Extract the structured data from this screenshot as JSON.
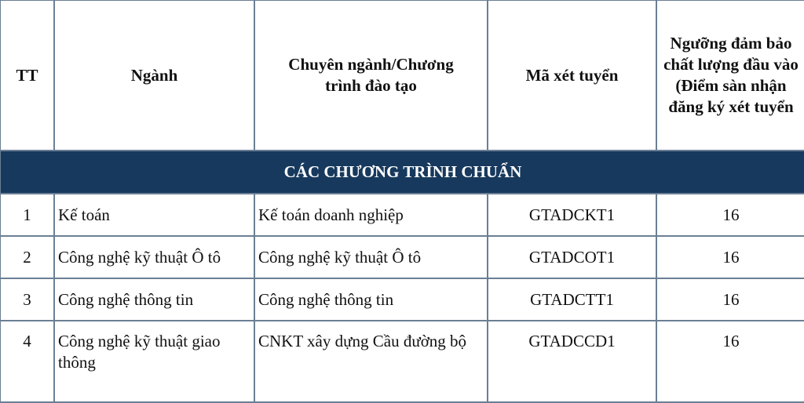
{
  "headers": [
    "TT",
    "Ngành",
    "Chuyên ngành/Chương trình đào tạo",
    "Mã xét tuyển",
    "Ngưỡng đảm bảo chất lượng đầu vào (Điểm sàn nhận đăng ký xét tuyển"
  ],
  "section_title": "CÁC CHƯƠNG TRÌNH CHUẨN",
  "rows": [
    [
      "1",
      "Kế toán",
      "Kế toán doanh nghiệp",
      "GTADCKT1",
      "16"
    ],
    [
      "2",
      "Công nghệ kỹ thuật Ô tô",
      "Công nghệ kỹ thuật Ô tô",
      "GTADCOT1",
      "16"
    ],
    [
      "3",
      "Công nghệ thông tin",
      "Công nghệ thông tin",
      "GTADCTT1",
      "16"
    ],
    [
      "4",
      "Công nghệ kỹ thuật giao thông",
      "CNKT xây dựng Cầu đường bộ",
      "GTADCCD1",
      "16"
    ]
  ],
  "colors": {
    "section_bg": "#17395d",
    "border": "#6b7f94"
  }
}
